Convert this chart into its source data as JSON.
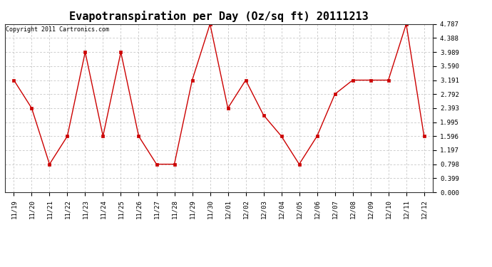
{
  "title": "Evapotranspiration per Day (Oz/sq ft) 20111213",
  "copyright": "Copyright 2011 Cartronics.com",
  "x_labels": [
    "11/19",
    "11/20",
    "11/21",
    "11/22",
    "11/23",
    "11/24",
    "11/25",
    "11/26",
    "11/27",
    "11/28",
    "11/29",
    "11/30",
    "12/01",
    "12/02",
    "12/03",
    "12/04",
    "12/05",
    "12/06",
    "12/07",
    "12/08",
    "12/09",
    "12/10",
    "12/11",
    "12/12"
  ],
  "y_values": [
    3.191,
    2.393,
    0.798,
    1.596,
    3.989,
    1.596,
    3.989,
    1.596,
    0.798,
    0.798,
    3.191,
    4.787,
    2.393,
    3.191,
    2.195,
    1.596,
    0.798,
    1.596,
    2.792,
    3.191,
    3.191,
    3.191,
    4.787,
    1.596
  ],
  "y_ticks": [
    0.0,
    0.399,
    0.798,
    1.197,
    1.596,
    1.995,
    2.393,
    2.792,
    3.191,
    3.59,
    3.989,
    4.388,
    4.787
  ],
  "line_color": "#cc0000",
  "marker_color": "#cc0000",
  "bg_color": "#ffffff",
  "grid_color": "#bbbbbb",
  "title_fontsize": 11,
  "copyright_fontsize": 6,
  "tick_fontsize": 6.5,
  "ylim": [
    0.0,
    4.787
  ],
  "figsize": [
    6.9,
    3.75
  ],
  "dpi": 100
}
